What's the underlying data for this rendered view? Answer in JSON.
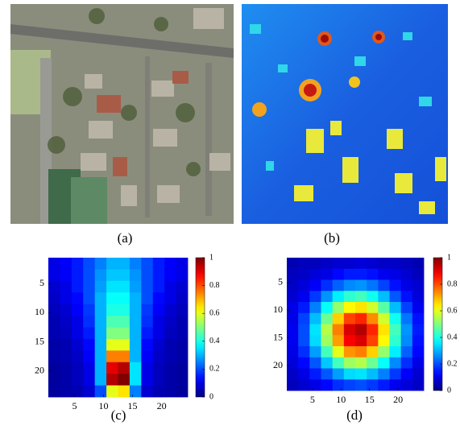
{
  "panels": [
    {
      "caption": "(a)"
    },
    {
      "caption": "(b)"
    }
  ],
  "chart_data": [
    {
      "type": "heatmap",
      "caption": "(c)",
      "colormap": "jet",
      "y_reversed": true,
      "xlim": [
        0.5,
        24.5
      ],
      "ylim": [
        0.5,
        24.5
      ],
      "xticks": [
        5,
        10,
        15,
        20
      ],
      "yticks": [
        5,
        10,
        15,
        20
      ],
      "clim": [
        0,
        1
      ],
      "cticks": [
        0,
        0.2,
        0.4,
        0.6,
        0.8,
        1
      ],
      "z": [
        [
          0.1,
          0.12,
          0.15,
          0.2,
          0.25,
          0.3,
          0.3,
          0.25,
          0.2,
          0.15,
          0.12,
          0.1
        ],
        [
          0.1,
          0.12,
          0.15,
          0.2,
          0.27,
          0.32,
          0.32,
          0.27,
          0.2,
          0.15,
          0.12,
          0.1
        ],
        [
          0.08,
          0.1,
          0.15,
          0.2,
          0.28,
          0.35,
          0.35,
          0.28,
          0.2,
          0.15,
          0.1,
          0.08
        ],
        [
          0.07,
          0.1,
          0.13,
          0.2,
          0.3,
          0.38,
          0.38,
          0.3,
          0.2,
          0.13,
          0.1,
          0.07
        ],
        [
          0.06,
          0.08,
          0.12,
          0.18,
          0.3,
          0.4,
          0.4,
          0.3,
          0.18,
          0.12,
          0.08,
          0.06
        ],
        [
          0.05,
          0.07,
          0.1,
          0.17,
          0.3,
          0.45,
          0.45,
          0.3,
          0.17,
          0.1,
          0.07,
          0.05
        ],
        [
          0.05,
          0.06,
          0.1,
          0.15,
          0.3,
          0.5,
          0.5,
          0.3,
          0.15,
          0.1,
          0.06,
          0.05
        ],
        [
          0.04,
          0.05,
          0.08,
          0.13,
          0.3,
          0.6,
          0.6,
          0.3,
          0.13,
          0.08,
          0.05,
          0.04
        ],
        [
          0.04,
          0.05,
          0.07,
          0.12,
          0.3,
          0.75,
          0.75,
          0.3,
          0.12,
          0.07,
          0.05,
          0.04
        ],
        [
          0.03,
          0.04,
          0.06,
          0.1,
          0.3,
          0.9,
          0.95,
          0.35,
          0.1,
          0.06,
          0.04,
          0.03
        ],
        [
          0.03,
          0.04,
          0.06,
          0.1,
          0.3,
          0.95,
          1,
          0.35,
          0.1,
          0.06,
          0.04,
          0.03
        ],
        [
          0.03,
          0.04,
          0.05,
          0.08,
          0.2,
          0.6,
          0.65,
          0.25,
          0.08,
          0.05,
          0.04,
          0.03
        ]
      ]
    },
    {
      "type": "heatmap",
      "caption": "(d)",
      "colormap": "jet",
      "y_reversed": true,
      "xlim": [
        0.5,
        24.5
      ],
      "ylim": [
        0.5,
        24.5
      ],
      "xticks": [
        5,
        10,
        15,
        20
      ],
      "yticks": [
        5,
        10,
        15,
        20
      ],
      "clim": [
        0,
        1
      ],
      "cticks": [
        0,
        0.2,
        0.4,
        0.6,
        0.8,
        1
      ],
      "z": [
        [
          0.05,
          0.06,
          0.06,
          0.07,
          0.08,
          0.08,
          0.09,
          0.08,
          0.07,
          0.07,
          0.06,
          0.05
        ],
        [
          0.06,
          0.07,
          0.09,
          0.1,
          0.13,
          0.15,
          0.15,
          0.14,
          0.11,
          0.1,
          0.08,
          0.06
        ],
        [
          0.07,
          0.09,
          0.12,
          0.17,
          0.22,
          0.26,
          0.27,
          0.24,
          0.19,
          0.14,
          0.1,
          0.08
        ],
        [
          0.08,
          0.11,
          0.18,
          0.27,
          0.36,
          0.42,
          0.44,
          0.39,
          0.31,
          0.21,
          0.14,
          0.09
        ],
        [
          0.1,
          0.15,
          0.25,
          0.38,
          0.52,
          0.63,
          0.65,
          0.58,
          0.46,
          0.31,
          0.19,
          0.11
        ],
        [
          0.1,
          0.19,
          0.31,
          0.48,
          0.67,
          0.81,
          0.84,
          0.74,
          0.58,
          0.39,
          0.24,
          0.14
        ],
        [
          0.11,
          0.2,
          0.35,
          0.55,
          0.75,
          0.91,
          0.95,
          0.84,
          0.65,
          0.44,
          0.27,
          0.15
        ],
        [
          0.11,
          0.2,
          0.34,
          0.53,
          0.72,
          0.88,
          0.91,
          0.81,
          0.63,
          0.42,
          0.26,
          0.14
        ],
        [
          0.1,
          0.17,
          0.28,
          0.44,
          0.6,
          0.73,
          0.75,
          0.67,
          0.52,
          0.36,
          0.22,
          0.13
        ],
        [
          0.09,
          0.13,
          0.21,
          0.32,
          0.44,
          0.53,
          0.55,
          0.48,
          0.38,
          0.26,
          0.17,
          0.1
        ],
        [
          0.07,
          0.1,
          0.15,
          0.21,
          0.28,
          0.34,
          0.35,
          0.31,
          0.25,
          0.18,
          0.12,
          0.08
        ],
        [
          0.06,
          0.08,
          0.1,
          0.13,
          0.17,
          0.19,
          0.2,
          0.18,
          0.15,
          0.11,
          0.09,
          0.07
        ]
      ]
    }
  ]
}
